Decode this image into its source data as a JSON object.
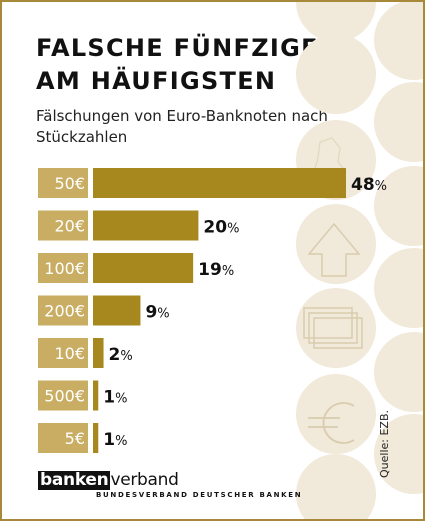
{
  "title_line1": "FALSCHE FÜNFZIGER",
  "title_line2": "AM HÄUFIGSTEN",
  "subtitle": "Fälschungen von Euro-Banknoten nach Stückzahlen",
  "source": "Quelle: EZB.",
  "logo": {
    "box_text": "banken",
    "rest_text": "verband",
    "sub_text": "BUNDESVERBAND DEUTSCHER BANKEN"
  },
  "colors": {
    "bar": "#a6881f",
    "label_box": "#c9ad62",
    "circle": "#f1e9d9",
    "frame": "#a8893a"
  },
  "chart_data": {
    "type": "bar",
    "orientation": "horizontal",
    "title": "FALSCHE FÜNFZIGER AM HÄUFIGSTEN",
    "subtitle": "Fälschungen von Euro-Banknoten nach Stückzahlen",
    "categories": [
      "50€",
      "20€",
      "100€",
      "200€",
      "10€",
      "500€",
      "5€"
    ],
    "values": [
      48,
      20,
      19,
      9,
      2,
      1,
      1
    ],
    "value_labels": [
      "48%",
      "20%",
      "19%",
      "9%",
      "2%",
      "1%",
      "1%"
    ],
    "unit": "%",
    "xlim": [
      0,
      48
    ],
    "grid": false,
    "legend": "none"
  }
}
